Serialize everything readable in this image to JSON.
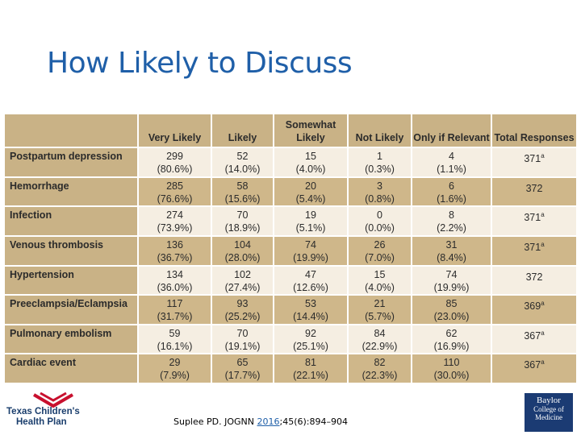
{
  "title": "How Likely to Discuss",
  "columns": [
    "",
    "Very Likely",
    "Likely",
    "Somewhat Likely",
    "Not Likely",
    "Only if Relevant",
    "Total Responses"
  ],
  "rows": [
    {
      "label": "Postpartum depression",
      "cells": [
        [
          "299",
          "(80.6%)"
        ],
        [
          "52",
          "(14.0%)"
        ],
        [
          "15",
          "(4.0%)"
        ],
        [
          "1",
          "(0.3%)"
        ],
        [
          "4",
          "(1.1%)"
        ]
      ],
      "total": "371",
      "sup": "a"
    },
    {
      "label": "Hemorrhage",
      "cells": [
        [
          "285",
          "(76.6%)"
        ],
        [
          "58",
          "(15.6%)"
        ],
        [
          "20",
          "(5.4%)"
        ],
        [
          "3",
          "(0.8%)"
        ],
        [
          "6",
          "(1.6%)"
        ]
      ],
      "total": "372",
      "sup": ""
    },
    {
      "label": "Infection",
      "cells": [
        [
          "274",
          "(73.9%)"
        ],
        [
          "70",
          "(18.9%)"
        ],
        [
          "19",
          "(5.1%)"
        ],
        [
          "0",
          "(0.0%)"
        ],
        [
          "8",
          "(2.2%)"
        ]
      ],
      "total": "371",
      "sup": "a"
    },
    {
      "label": "Venous thrombosis",
      "cells": [
        [
          "136",
          "(36.7%)"
        ],
        [
          "104",
          "(28.0%)"
        ],
        [
          "74",
          "(19.9%)"
        ],
        [
          "26",
          "(7.0%)"
        ],
        [
          "31",
          "(8.4%)"
        ]
      ],
      "total": "371",
      "sup": "a"
    },
    {
      "label": "Hypertension",
      "cells": [
        [
          "134",
          "(36.0%)"
        ],
        [
          "102",
          "(27.4%)"
        ],
        [
          "47",
          "(12.6%)"
        ],
        [
          "15",
          "(4.0%)"
        ],
        [
          "74",
          "(19.9%)"
        ]
      ],
      "total": "372",
      "sup": ""
    },
    {
      "label": "Preeclampsia/Eclampsia",
      "cells": [
        [
          "117",
          "(31.7%)"
        ],
        [
          "93",
          "(25.2%)"
        ],
        [
          "53",
          "(14.4%)"
        ],
        [
          "21",
          "(5.7%)"
        ],
        [
          "85",
          "(23.0%)"
        ]
      ],
      "total": "369",
      "sup": "a"
    },
    {
      "label": "Pulmonary embolism",
      "cells": [
        [
          "59",
          "(16.1%)"
        ],
        [
          "70",
          "(19.1%)"
        ],
        [
          "92",
          "(25.1%)"
        ],
        [
          "84",
          "(22.9%)"
        ],
        [
          "62",
          "(16.9%)"
        ]
      ],
      "total": "367",
      "sup": "a"
    },
    {
      "label": "Cardiac event",
      "cells": [
        [
          "29",
          "(7.9%)"
        ],
        [
          "65",
          "(17.7%)"
        ],
        [
          "81",
          "(22.1%)"
        ],
        [
          "82",
          "(22.3%)"
        ],
        [
          "110",
          "(30.0%)"
        ]
      ],
      "total": "367",
      "sup": "a"
    }
  ],
  "logos": {
    "left_line1": "Texas Children's",
    "left_line2": "Health Plan",
    "right_line1": "Baylor",
    "right_line2": "College of Medicine"
  },
  "citation": {
    "pre": "Suplee PD. JOGNN ",
    "year": "2016",
    "post": ";45(6):894–904"
  },
  "colors": {
    "title": "#1f5fa8",
    "header_bg": "#c9b286",
    "row_light": "#f5eee2",
    "row_dark": "#cfb78a",
    "logo_red": "#c8102e",
    "baylor_blue": "#1b3b73"
  }
}
